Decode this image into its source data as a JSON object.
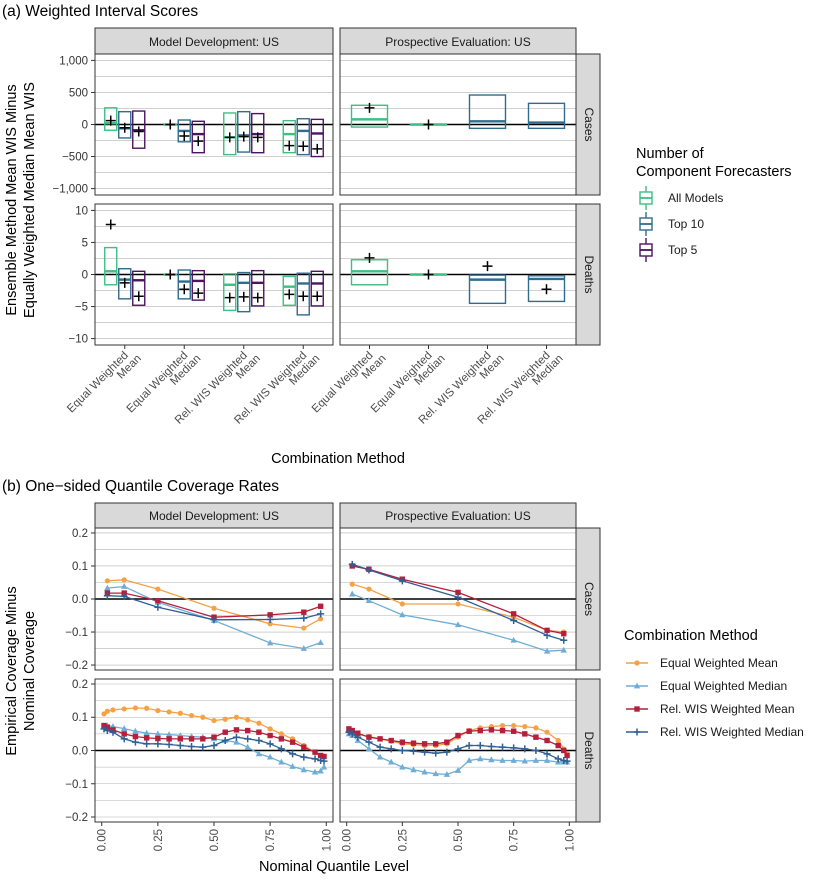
{
  "figure": {
    "panel_a_title": "(a) Weighted Interval Scores",
    "panel_b_title": "(b) One−sided Quantile Coverage Rates"
  },
  "chart_data": [
    {
      "type": "boxplot",
      "title": "(a) Weighted Interval Scores",
      "ylabel_lines": [
        "Ensemble Method Mean WIS Minus",
        "Equally Weighted Median Mean WIS"
      ],
      "xlabel": "Combination Method",
      "columns": [
        "Model Development: US",
        "Prospective Evaluation: US"
      ],
      "rows": [
        "Cases",
        "Deaths"
      ],
      "x_labels": {
        "Model Development: US": [
          [
            "Equal Weighted",
            "Mean"
          ],
          [
            "Equal Weighted",
            "Median"
          ],
          [
            "Rel. WIS Weighted",
            "Mean"
          ],
          [
            "Rel. WIS Weighted",
            "Median"
          ]
        ],
        "Prospective Evaluation: US": [
          [
            "Equal Weighted",
            "Mean"
          ],
          [
            "Equal Weighted",
            "Median"
          ],
          [
            "Rel. WIS Weighted",
            "Mean"
          ],
          [
            "Rel. WIS Weighted",
            "Median"
          ]
        ]
      },
      "y_axes": {
        "Cases": {
          "ylim": [
            -1100,
            1100
          ],
          "ticks": [
            -1000,
            -500,
            0,
            500,
            1000
          ],
          "tick_labels": [
            "−1,000",
            "−500",
            "0",
            "500",
            "1,000"
          ]
        },
        "Deaths": {
          "ylim": [
            -11,
            11
          ],
          "ticks": [
            -10,
            -5,
            0,
            5,
            10
          ],
          "tick_labels": [
            "−10",
            "−5",
            "0",
            "5",
            "10"
          ]
        }
      },
      "legend": {
        "title_lines": [
          "Number of",
          "Component Forecasters"
        ],
        "items": [
          {
            "label": "All Models",
            "color": "#3fbe83"
          },
          {
            "label": "Top 10",
            "color": "#2f6c8e"
          },
          {
            "label": "Top 5",
            "color": "#4c1460"
          }
        ]
      },
      "series": [
        {
          "column": "Model Development: US",
          "row": "Cases",
          "boxes": [
            {
              "method": 0,
              "group": "All Models",
              "q1": -90,
              "median": 20,
              "q3": 260,
              "mean": 60
            },
            {
              "method": 0,
              "group": "Top 10",
              "q1": -210,
              "median": -60,
              "q3": 200,
              "mean": -50
            },
            {
              "method": 0,
              "group": "Top 5",
              "q1": -370,
              "median": -90,
              "q3": 210,
              "mean": -110
            },
            {
              "method": 1,
              "group": "All Models",
              "q1": 0,
              "median": 0,
              "q3": 0,
              "mean": 0
            },
            {
              "method": 1,
              "group": "Top 10",
              "q1": -270,
              "median": -100,
              "q3": 70,
              "mean": -180
            },
            {
              "method": 1,
              "group": "Top 5",
              "q1": -440,
              "median": -150,
              "q3": 50,
              "mean": -260
            },
            {
              "method": 2,
              "group": "All Models",
              "q1": -470,
              "median": -200,
              "q3": 180,
              "mean": -200
            },
            {
              "method": 2,
              "group": "Top 10",
              "q1": -430,
              "median": -170,
              "q3": 200,
              "mean": -190
            },
            {
              "method": 2,
              "group": "Top 5",
              "q1": -440,
              "median": -150,
              "q3": 170,
              "mean": -200
            },
            {
              "method": 3,
              "group": "All Models",
              "q1": -440,
              "median": -150,
              "q3": 60,
              "mean": -330
            },
            {
              "method": 3,
              "group": "Top 10",
              "q1": -470,
              "median": -100,
              "q3": 90,
              "mean": -340
            },
            {
              "method": 3,
              "group": "Top 5",
              "q1": -500,
              "median": -140,
              "q3": 80,
              "mean": -380
            }
          ]
        },
        {
          "column": "Prospective Evaluation: US",
          "row": "Cases",
          "boxes": [
            {
              "method": 0,
              "group": "All Models",
              "q1": -40,
              "median": 80,
              "q3": 300,
              "mean": 260
            },
            {
              "method": 1,
              "group": "All Models",
              "q1": 0,
              "median": 0,
              "q3": 0,
              "mean": 0
            },
            {
              "method": 2,
              "group": "Top 10",
              "q1": -60,
              "median": 50,
              "q3": 460,
              "mean": null
            },
            {
              "method": 3,
              "group": "Top 10",
              "q1": -60,
              "median": 30,
              "q3": 330,
              "mean": null
            }
          ]
        },
        {
          "column": "Model Development: US",
          "row": "Deaths",
          "boxes": [
            {
              "method": 0,
              "group": "All Models",
              "q1": -1.6,
              "median": 0.5,
              "q3": 4.2,
              "mean": 7.8
            },
            {
              "method": 0,
              "group": "Top 10",
              "q1": -3.8,
              "median": -0.8,
              "q3": 0.9,
              "mean": -1.3
            },
            {
              "method": 0,
              "group": "Top 5",
              "q1": -4.8,
              "median": -0.9,
              "q3": 0.5,
              "mean": -3.4
            },
            {
              "method": 1,
              "group": "All Models",
              "q1": 0,
              "median": 0,
              "q3": 0,
              "mean": 0
            },
            {
              "method": 1,
              "group": "Top 10",
              "q1": -3.8,
              "median": -1.1,
              "q3": 0.7,
              "mean": -2.3
            },
            {
              "method": 1,
              "group": "Top 5",
              "q1": -4.0,
              "median": -1.0,
              "q3": 0.6,
              "mean": -2.9
            },
            {
              "method": 2,
              "group": "All Models",
              "q1": -5.6,
              "median": -1.6,
              "q3": 0.1,
              "mean": -3.6
            },
            {
              "method": 2,
              "group": "Top 10",
              "q1": -5.8,
              "median": -1.3,
              "q3": 0.3,
              "mean": -3.5
            },
            {
              "method": 2,
              "group": "Top 5",
              "q1": -4.9,
              "median": -1.3,
              "q3": 0.6,
              "mean": -3.6
            },
            {
              "method": 3,
              "group": "All Models",
              "q1": -4.8,
              "median": -1.9,
              "q3": -0.3,
              "mean": -3.1
            },
            {
              "method": 3,
              "group": "Top 10",
              "q1": -6.3,
              "median": -1.4,
              "q3": 0.2,
              "mean": -3.4
            },
            {
              "method": 3,
              "group": "Top 5",
              "q1": -4.9,
              "median": -1.4,
              "q3": 0.5,
              "mean": -3.4
            }
          ]
        },
        {
          "column": "Prospective Evaluation: US",
          "row": "Deaths",
          "boxes": [
            {
              "method": 0,
              "group": "All Models",
              "q1": -1.6,
              "median": 0.5,
              "q3": 2.3,
              "mean": 2.6
            },
            {
              "method": 1,
              "group": "All Models",
              "q1": 0,
              "median": 0,
              "q3": 0,
              "mean": 0
            },
            {
              "method": 2,
              "group": "Top 10",
              "q1": -4.5,
              "median": -0.8,
              "q3": -0.1,
              "mean": 1.3
            },
            {
              "method": 3,
              "group": "Top 10",
              "q1": -4.2,
              "median": -0.7,
              "q3": -0.2,
              "mean": -2.3
            }
          ]
        }
      ]
    },
    {
      "type": "line",
      "title": "(b) One−sided Quantile Coverage Rates",
      "ylabel_lines": [
        "Empirical Coverage Minus",
        "Nominal Coverage"
      ],
      "xlabel": "Nominal Quantile Level",
      "columns": [
        "Model Development: US",
        "Prospective Evaluation: US"
      ],
      "rows": [
        "Cases",
        "Deaths"
      ],
      "xlim": [
        -0.03,
        1.03
      ],
      "ylim": [
        -0.215,
        0.215
      ],
      "x_ticks": [
        0,
        0.25,
        0.5,
        0.75,
        1
      ],
      "x_tick_labels": [
        "0.00",
        "0.25",
        "0.50",
        "0.75",
        "1.00"
      ],
      "y_ticks": [
        -0.2,
        -0.1,
        0,
        0.1,
        0.2
      ],
      "y_tick_labels": [
        "−0.2",
        "−0.1",
        "0.0",
        "0.1",
        "0.2"
      ],
      "legend": {
        "title": "Combination Method",
        "items": [
          {
            "label": "Equal Weighted Mean",
            "color": "#f5a146",
            "marker": "circle"
          },
          {
            "label": "Equal Weighted Median",
            "color": "#6fadd6",
            "marker": "triangle"
          },
          {
            "label": "Rel. WIS Weighted Mean",
            "color": "#b51f3b",
            "marker": "square"
          },
          {
            "label": "Rel. WIS Weighted Median",
            "color": "#2f5f96",
            "marker": "plus"
          }
        ]
      },
      "x_cases": [
        0.025,
        0.1,
        0.25,
        0.5,
        0.75,
        0.9,
        0.975
      ],
      "x_deaths": [
        0.01,
        0.025,
        0.05,
        0.1,
        0.15,
        0.2,
        0.25,
        0.3,
        0.35,
        0.4,
        0.45,
        0.5,
        0.55,
        0.6,
        0.65,
        0.7,
        0.75,
        0.8,
        0.85,
        0.9,
        0.95,
        0.975,
        0.99
      ],
      "panels": [
        {
          "column": "Model Development: US",
          "row": "Cases",
          "series": [
            {
              "name": "Equal Weighted Mean",
              "values": [
                0.055,
                0.058,
                0.03,
                -0.028,
                -0.075,
                -0.088,
                -0.06
              ]
            },
            {
              "name": "Equal Weighted Median",
              "values": [
                0.033,
                0.038,
                -0.01,
                -0.065,
                -0.133,
                -0.15,
                -0.132
              ]
            },
            {
              "name": "Rel. WIS Weighted Mean",
              "values": [
                0.018,
                0.018,
                -0.005,
                -0.055,
                -0.048,
                -0.04,
                -0.022
              ]
            },
            {
              "name": "Rel. WIS Weighted Median",
              "values": [
                0.01,
                0.008,
                -0.025,
                -0.063,
                -0.062,
                -0.058,
                -0.045
              ]
            }
          ]
        },
        {
          "column": "Prospective Evaluation: US",
          "row": "Cases",
          "series": [
            {
              "name": "Equal Weighted Mean",
              "values": [
                0.045,
                0.03,
                -0.015,
                -0.015,
                -0.055,
                -0.095,
                -0.1
              ]
            },
            {
              "name": "Equal Weighted Median",
              "values": [
                0.015,
                -0.005,
                -0.048,
                -0.078,
                -0.125,
                -0.158,
                -0.155
              ]
            },
            {
              "name": "Rel. WIS Weighted Mean",
              "values": [
                0.1,
                0.09,
                0.06,
                0.02,
                -0.045,
                -0.095,
                -0.105
              ]
            },
            {
              "name": "Rel. WIS Weighted Median",
              "values": [
                0.105,
                0.088,
                0.055,
                0.005,
                -0.065,
                -0.11,
                -0.125
              ]
            }
          ]
        },
        {
          "column": "Model Development: US",
          "row": "Deaths",
          "series": [
            {
              "name": "Equal Weighted Mean",
              "values": [
                0.11,
                0.118,
                0.122,
                0.125,
                0.128,
                0.127,
                0.12,
                0.116,
                0.112,
                0.105,
                0.1,
                0.09,
                0.094,
                0.1,
                0.092,
                0.082,
                0.065,
                0.05,
                0.035,
                0.015,
                -0.005,
                -0.015,
                -0.018
              ]
            },
            {
              "name": "Equal Weighted Median",
              "values": [
                0.07,
                0.075,
                0.072,
                0.066,
                0.058,
                0.052,
                0.05,
                0.048,
                0.045,
                0.042,
                0.04,
                0.035,
                0.03,
                0.025,
                0.01,
                -0.01,
                -0.02,
                -0.035,
                -0.048,
                -0.058,
                -0.065,
                -0.062,
                -0.05
              ]
            },
            {
              "name": "Rel. WIS Weighted Mean",
              "values": [
                0.075,
                0.07,
                0.062,
                0.05,
                0.042,
                0.038,
                0.036,
                0.035,
                0.035,
                0.035,
                0.035,
                0.04,
                0.055,
                0.062,
                0.06,
                0.055,
                0.045,
                0.035,
                0.025,
                0.01,
                -0.005,
                -0.015,
                -0.018
              ]
            },
            {
              "name": "Rel. WIS Weighted Median",
              "values": [
                0.065,
                0.06,
                0.055,
                0.035,
                0.025,
                0.02,
                0.02,
                0.018,
                0.015,
                0.012,
                0.01,
                0.015,
                0.03,
                0.04,
                0.035,
                0.03,
                0.02,
                0.005,
                -0.01,
                -0.02,
                -0.025,
                -0.03,
                -0.032
              ]
            }
          ]
        },
        {
          "column": "Prospective Evaluation: US",
          "row": "Deaths",
          "series": [
            {
              "name": "Equal Weighted Mean",
              "values": [
                0.06,
                0.055,
                0.048,
                0.042,
                0.035,
                0.028,
                0.02,
                0.018,
                0.015,
                0.015,
                0.02,
                0.04,
                0.06,
                0.068,
                0.072,
                0.075,
                0.075,
                0.072,
                0.068,
                0.055,
                0.03,
                0.005,
                -0.01
              ]
            },
            {
              "name": "Equal Weighted Median",
              "values": [
                0.05,
                0.045,
                0.03,
                0.005,
                -0.02,
                -0.035,
                -0.05,
                -0.058,
                -0.065,
                -0.07,
                -0.072,
                -0.06,
                -0.03,
                -0.025,
                -0.028,
                -0.03,
                -0.03,
                -0.032,
                -0.03,
                -0.03,
                -0.035,
                -0.035,
                -0.035
              ]
            },
            {
              "name": "Rel. WIS Weighted Mean",
              "values": [
                0.065,
                0.06,
                0.052,
                0.04,
                0.035,
                0.03,
                0.025,
                0.022,
                0.02,
                0.02,
                0.025,
                0.045,
                0.058,
                0.06,
                0.062,
                0.06,
                0.058,
                0.05,
                0.04,
                0.03,
                0.015,
                0.0,
                -0.015
              ]
            },
            {
              "name": "Rel. WIS Weighted Median",
              "values": [
                0.055,
                0.05,
                0.04,
                0.025,
                0.01,
                0.005,
                0.0,
                -0.002,
                -0.005,
                -0.008,
                -0.005,
                0.005,
                0.015,
                0.015,
                0.012,
                0.01,
                0.008,
                0.005,
                0.0,
                -0.01,
                -0.025,
                -0.03,
                -0.032
              ]
            }
          ]
        }
      ]
    }
  ]
}
